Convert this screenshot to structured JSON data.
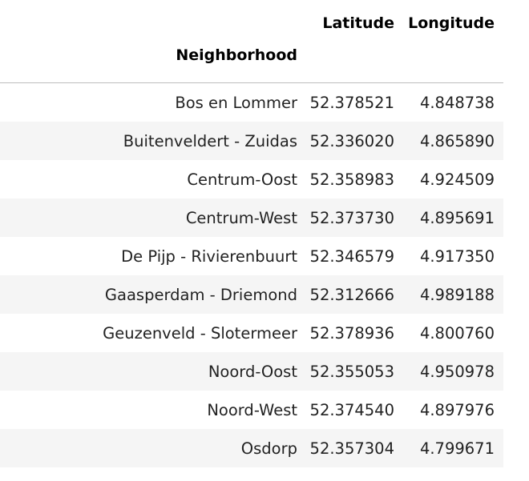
{
  "table": {
    "columns": [
      "Latitude",
      "Longitude"
    ],
    "index_name": "Neighborhood",
    "rows": [
      {
        "index": "Bos en Lommer",
        "latitude": "52.378521",
        "longitude": "4.848738"
      },
      {
        "index": "Buitenveldert - Zuidas",
        "latitude": "52.336020",
        "longitude": "4.865890"
      },
      {
        "index": "Centrum-Oost",
        "latitude": "52.358983",
        "longitude": "4.924509"
      },
      {
        "index": "Centrum-West",
        "latitude": "52.373730",
        "longitude": "4.895691"
      },
      {
        "index": "De Pijp - Rivierenbuurt",
        "latitude": "52.346579",
        "longitude": "4.917350"
      },
      {
        "index": "Gaasperdam - Driemond",
        "latitude": "52.312666",
        "longitude": "4.989188"
      },
      {
        "index": "Geuzenveld - Slotermeer",
        "latitude": "52.378936",
        "longitude": "4.800760"
      },
      {
        "index": "Noord-Oost",
        "latitude": "52.355053",
        "longitude": "4.950978"
      },
      {
        "index": "Noord-West",
        "latitude": "52.374540",
        "longitude": "4.897976"
      },
      {
        "index": "Osdorp",
        "latitude": "52.357304",
        "longitude": "4.799671"
      }
    ]
  },
  "colors": {
    "stripe": "#f5f5f5",
    "header_rule": "#bdbdbd"
  }
}
